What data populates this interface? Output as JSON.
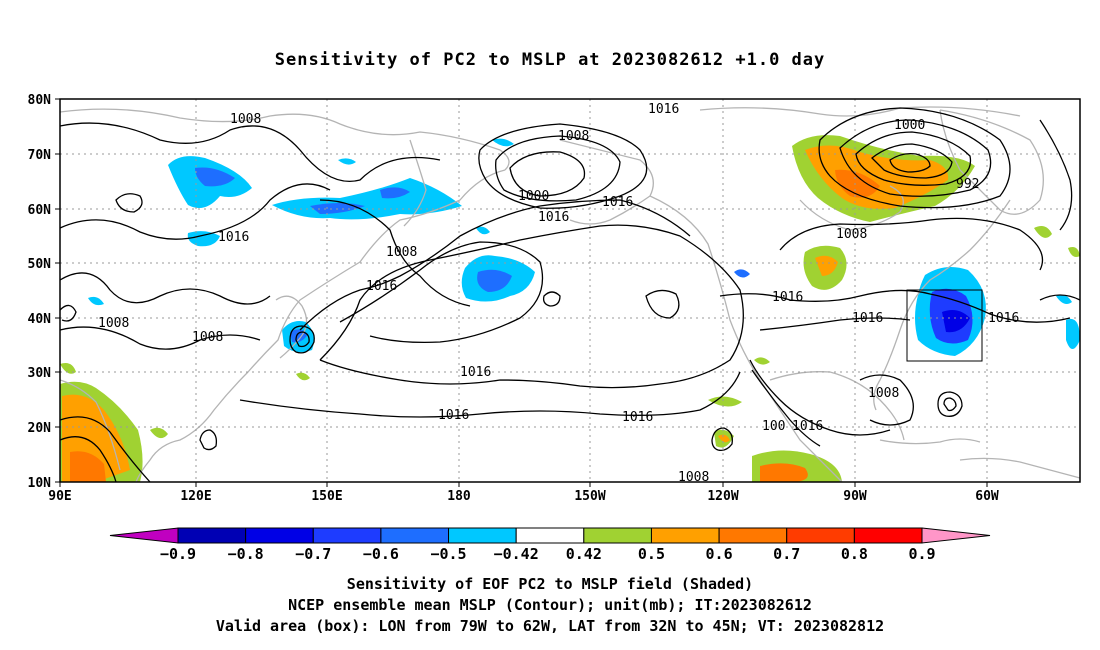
{
  "title": "Sensitivity of PC2 to MSLP at 2023082612 +1.0 day",
  "map": {
    "lat_ticks": [
      "80N",
      "70N",
      "60N",
      "50N",
      "40N",
      "30N",
      "20N",
      "10N"
    ],
    "lon_ticks": [
      "90E",
      "120E",
      "150E",
      "180",
      "150W",
      "120W",
      "90W",
      "60W"
    ],
    "valid_box": {
      "lon_west": -79,
      "lon_east": -62,
      "lat_south": 32,
      "lat_north": 45
    },
    "contour_labels": [
      "1008",
      "1016",
      "1008",
      "1016",
      "1016",
      "1008",
      "1008",
      "1000",
      "1008",
      "1016",
      "1016",
      "1016",
      "1016",
      "1000",
      "992",
      "1008",
      "1016",
      "1016",
      "1016",
      "1008",
      "1016",
      "100",
      "1016",
      "1008"
    ],
    "colors": {
      "coast": "#b4b4b4",
      "contour": "#000000",
      "grid": "#9a9a9a"
    }
  },
  "colorbar": {
    "labels": [
      "-0.9",
      "-0.8",
      "-0.7",
      "-0.6",
      "-0.5",
      "-0.42",
      "0.42",
      "0.5",
      "0.6",
      "0.7",
      "0.8",
      "0.9"
    ],
    "colors": [
      "#c000c0",
      "#0000b4",
      "#0000e6",
      "#1e3cff",
      "#1e6eff",
      "#00c8ff",
      "#ffffff",
      "#a0d232",
      "#ffa000",
      "#ff7800",
      "#ff3c00",
      "#ff0000",
      "#ff96c8"
    ]
  },
  "caption": {
    "line1": "Sensitivity of EOF PC2 to MSLP field (Shaded)",
    "line2": "NCEP ensemble mean MSLP (Contour); unit(mb); IT:2023082612",
    "line3": "Valid area (box): LON from 79W to 62W, LAT from 32N to 45N; VT: 2023082812"
  }
}
